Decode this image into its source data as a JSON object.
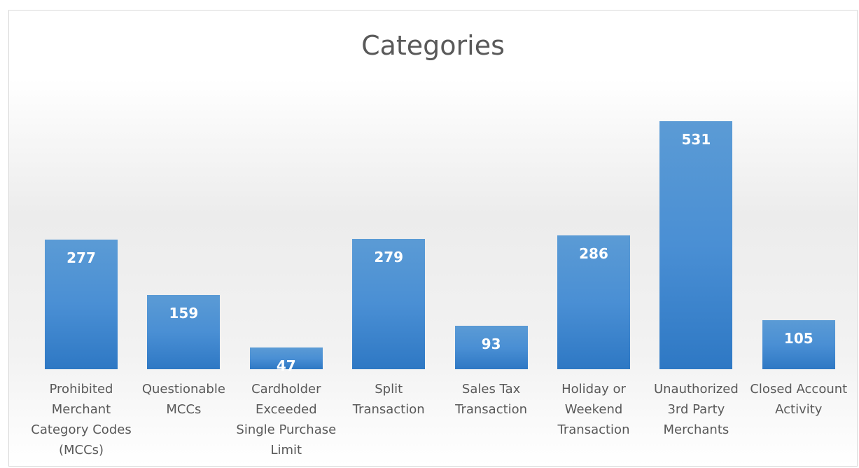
{
  "chart_data": {
    "type": "bar",
    "title": "Categories",
    "categories": [
      "Prohibited Merchant Category Codes (MCCs)",
      "Questionable MCCs",
      "Cardholder Exceeded Single Purchase Limit",
      "Split Transaction",
      "Sales Tax Transaction",
      "Holiday or Weekend Transaction",
      "Unauthorized 3rd Party Merchants",
      "Closed Account Activity"
    ],
    "values": [
      277,
      159,
      47,
      279,
      93,
      286,
      531,
      105
    ],
    "color": "#4a8fd4"
  }
}
